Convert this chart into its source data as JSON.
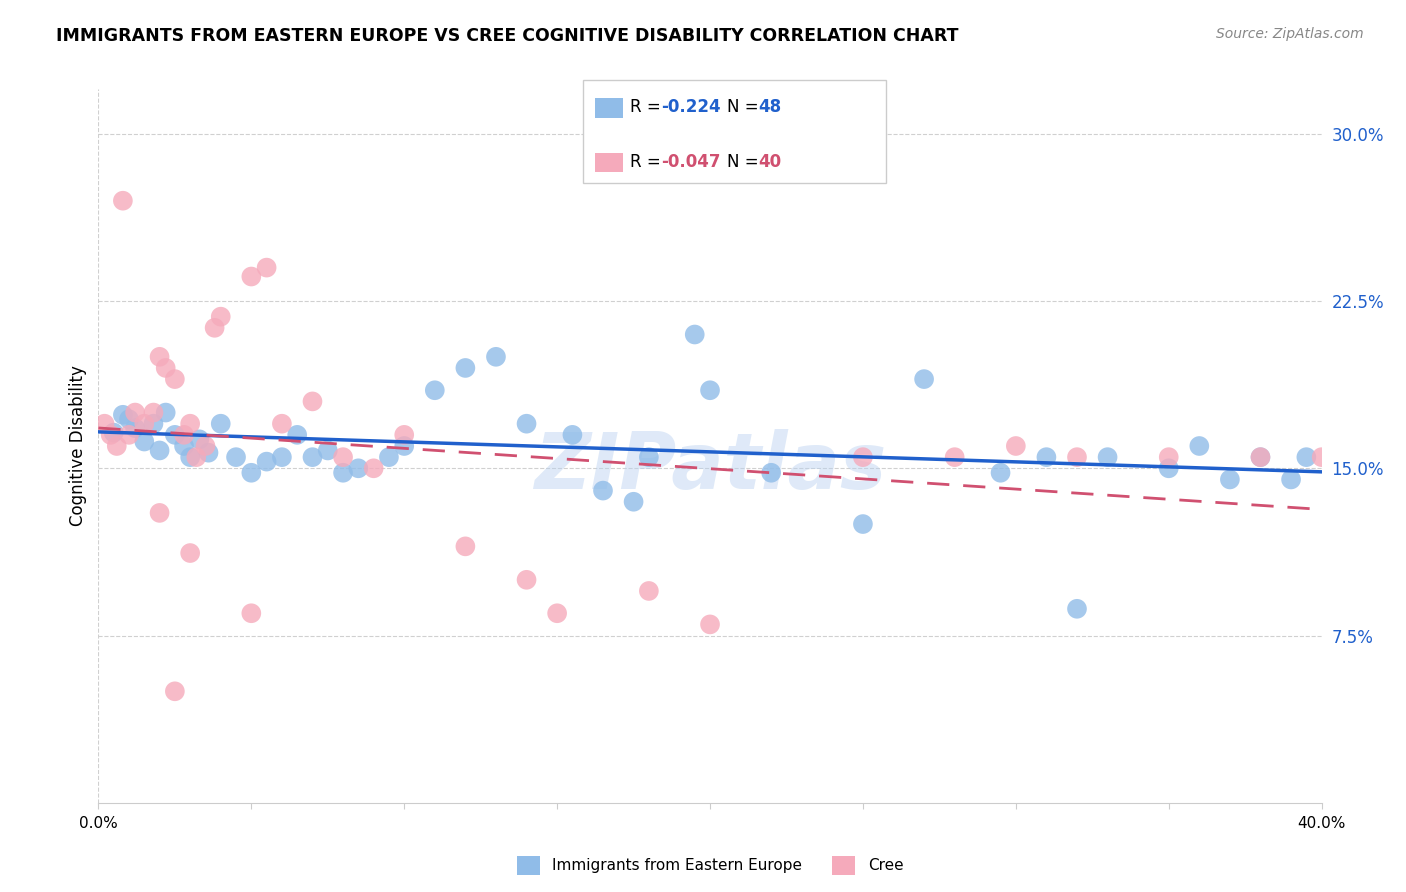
{
  "title": "IMMIGRANTS FROM EASTERN EUROPE VS CREE COGNITIVE DISABILITY CORRELATION CHART",
  "source": "Source: ZipAtlas.com",
  "ylabel": "Cognitive Disability",
  "ytick_labels": [
    "7.5%",
    "15.0%",
    "22.5%",
    "30.0%"
  ],
  "ytick_values": [
    0.075,
    0.15,
    0.225,
    0.3
  ],
  "xtick_values": [
    0.0,
    0.05,
    0.1,
    0.15,
    0.2,
    0.25,
    0.3,
    0.35,
    0.4
  ],
  "xlim": [
    0.0,
    0.4
  ],
  "ylim": [
    0.0,
    0.32
  ],
  "legend_blue_r": "-0.224",
  "legend_blue_n": "48",
  "legend_pink_r": "-0.047",
  "legend_pink_n": "40",
  "blue_color": "#90bce8",
  "pink_color": "#f5aabb",
  "trendline_blue_color": "#2060cc",
  "trendline_pink_color": "#d05070",
  "watermark": "ZIPatlas",
  "blue_scatter_x": [
    0.005,
    0.008,
    0.01,
    0.012,
    0.015,
    0.018,
    0.02,
    0.022,
    0.025,
    0.028,
    0.03,
    0.033,
    0.036,
    0.04,
    0.045,
    0.05,
    0.055,
    0.06,
    0.065,
    0.07,
    0.075,
    0.08,
    0.085,
    0.095,
    0.1,
    0.11,
    0.12,
    0.13,
    0.14,
    0.155,
    0.165,
    0.175,
    0.18,
    0.195,
    0.2,
    0.22,
    0.25,
    0.27,
    0.295,
    0.31,
    0.32,
    0.33,
    0.35,
    0.36,
    0.37,
    0.38,
    0.39,
    0.395
  ],
  "blue_scatter_y": [
    0.166,
    0.174,
    0.172,
    0.168,
    0.162,
    0.17,
    0.158,
    0.175,
    0.165,
    0.16,
    0.155,
    0.163,
    0.157,
    0.17,
    0.155,
    0.148,
    0.153,
    0.155,
    0.165,
    0.155,
    0.158,
    0.148,
    0.15,
    0.155,
    0.16,
    0.185,
    0.195,
    0.2,
    0.17,
    0.165,
    0.14,
    0.135,
    0.155,
    0.21,
    0.185,
    0.148,
    0.125,
    0.19,
    0.148,
    0.155,
    0.087,
    0.155,
    0.15,
    0.16,
    0.145,
    0.155,
    0.145,
    0.155
  ],
  "pink_scatter_x": [
    0.002,
    0.004,
    0.006,
    0.008,
    0.01,
    0.012,
    0.015,
    0.018,
    0.02,
    0.022,
    0.025,
    0.028,
    0.03,
    0.032,
    0.035,
    0.038,
    0.04,
    0.05,
    0.055,
    0.06,
    0.07,
    0.08,
    0.09,
    0.1,
    0.12,
    0.14,
    0.15,
    0.18,
    0.2,
    0.25,
    0.28,
    0.3,
    0.32,
    0.35,
    0.38,
    0.4,
    0.02,
    0.025,
    0.03,
    0.05
  ],
  "pink_scatter_y": [
    0.17,
    0.165,
    0.16,
    0.27,
    0.165,
    0.175,
    0.17,
    0.175,
    0.2,
    0.195,
    0.19,
    0.165,
    0.17,
    0.155,
    0.16,
    0.213,
    0.218,
    0.236,
    0.24,
    0.17,
    0.18,
    0.155,
    0.15,
    0.165,
    0.115,
    0.1,
    0.085,
    0.095,
    0.08,
    0.155,
    0.155,
    0.16,
    0.155,
    0.155,
    0.155,
    0.155,
    0.13,
    0.05,
    0.112,
    0.085
  ]
}
